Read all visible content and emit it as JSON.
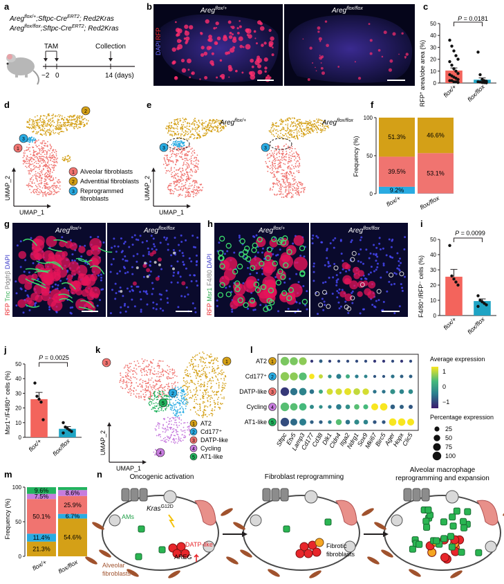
{
  "panel_letters": [
    "a",
    "b",
    "c",
    "d",
    "e",
    "f",
    "g",
    "h",
    "i",
    "j",
    "k",
    "l",
    "m",
    "n"
  ],
  "a": {
    "genotype1": "Areg",
    "genotype1_sup": "flox/+",
    "genotype1_rest": ";Sftpc-Cre",
    "genotype1_sup2": "ERT2",
    "genotype1_end": "; Red2Kras",
    "genotype2": "Areg",
    "genotype2_sup": "flox/flox",
    "genotype2_rest": ";Sftpc-Cre",
    "genotype2_sup2": "ERT2",
    "genotype2_end": "; Red2Kras",
    "tam": "TAM",
    "collection": "Collection",
    "ticks": [
      "−2",
      "0",
      "14 (days)"
    ]
  },
  "b": {
    "stain_red": "RFP",
    "stain_blue": "DAPI",
    "left": "Areg",
    "left_sup": "flox/+",
    "right": "Areg",
    "right_sup": "flox/flox"
  },
  "c": {
    "ylabel_main": "RFP",
    "ylabel_sup": "+",
    "ylabel_rest": " area/obe area (%)",
    "yticks": [
      "0",
      "10",
      "20",
      "30",
      "40",
      "50"
    ],
    "pvalue": "P = 0.0181",
    "groups": [
      "flox/+",
      "flox/flox"
    ]
  },
  "d": {
    "legend": [
      {
        "num": "1",
        "label": "Alveolar fibroblasts",
        "color": "#f07470"
      },
      {
        "num": "2",
        "label": "Adventitial fibroblasts",
        "color": "#d4a017"
      },
      {
        "num": "3",
        "label": "Reprogrammed",
        "label2": "fibroblasts",
        "color": "#29abe2"
      }
    ],
    "axis_y": "UMAP_2",
    "axis_x": "UMAP_1"
  },
  "e": {
    "left": "Areg",
    "left_sup": "flox/+",
    "right": "Areg",
    "right_sup": "flox/flox",
    "axis_y": "UMAP_2",
    "axis_x": "UMAP_1",
    "mark": "3"
  },
  "f": {
    "ylabel": "Frequency (%)",
    "yticks": [
      "0",
      "50",
      "100"
    ],
    "groups": [
      "flox/+",
      "flox/flox"
    ],
    "segments": [
      {
        "values": [
          9.2,
          39.5,
          51.3
        ],
        "labels": [
          "9.2%",
          "39.5%",
          "51.3%"
        ]
      },
      {
        "values": [
          0.3,
          53.1,
          46.6
        ],
        "labels": [
          "",
          "53.1%",
          "46.6%"
        ]
      }
    ]
  },
  "g": {
    "stain_red": "RFP",
    "stain_green": "Tnc",
    "stain_white": "Pdgfrβ",
    "stain_blue": "DAPI",
    "left": "Areg",
    "left_sup": "flox/+",
    "right": "Areg",
    "right_sup": "flox/flox"
  },
  "h": {
    "stain_red": "RFP",
    "stain_green": "Msr1",
    "stain_white": "F4/80",
    "stain_blue": "DAPI",
    "left": "Areg",
    "left_sup": "flox/+",
    "right": "Areg",
    "right_sup": "flox/flox"
  },
  "i": {
    "ylabel": "F4/80⁺/RFP⁻ cells (%)",
    "yticks": [
      "0",
      "10",
      "20",
      "30",
      "40",
      "50"
    ],
    "pvalue": "P = 0.0099",
    "groups": [
      "flox/+",
      "flox/flox"
    ]
  },
  "j": {
    "ylabel": "Msr1⁺/F4/80⁺ cells (%)",
    "yticks": [
      "0",
      "10",
      "20",
      "30",
      "40",
      "50"
    ],
    "pvalue": "P = 0.0025",
    "groups": [
      "flox/+",
      "flox/flox"
    ]
  },
  "k": {
    "legend": [
      {
        "num": "1",
        "label": "AT2",
        "color": "#d4a017"
      },
      {
        "num": "2",
        "label": "Cd177⁺",
        "color": "#29abe2"
      },
      {
        "num": "3",
        "label": "DATP-like",
        "color": "#f07470"
      },
      {
        "num": "4",
        "label": "Cycling",
        "color": "#c77cde"
      },
      {
        "num": "5",
        "label": "AT1-like",
        "color": "#22b35e"
      }
    ],
    "axis_y": "UMAP_2",
    "axis_x": "UMAP_1"
  },
  "l": {
    "rows": [
      {
        "label": "AT2",
        "num": "1",
        "color": "#d4a017"
      },
      {
        "label": "Cd177⁺",
        "num": "2",
        "color": "#29abe2"
      },
      {
        "label": "DATP-like",
        "num": "3",
        "color": "#f07470"
      },
      {
        "label": "Cycling",
        "num": "4",
        "color": "#c77cde"
      },
      {
        "label": "AT1-like",
        "num": "5",
        "color": "#22b35e"
      }
    ],
    "genes": [
      "Sftpc",
      "Etv5",
      "Lamp3",
      "Cd177",
      "Cd38",
      "Dlk1",
      "Cldn4",
      "Itga2",
      "Ndrg1",
      "Sox9",
      "Mki67",
      "Birc5",
      "Ager",
      "Hopx",
      "Clic5"
    ],
    "avg_title": "Average expression",
    "avg_ticks": [
      "1",
      "0",
      "−1"
    ],
    "pct_title": "Percentage expression",
    "pct_ticks": [
      "25",
      "50",
      "75",
      "100"
    ]
  },
  "m": {
    "ylabel": "Frequency (%)",
    "yticks": [
      "0",
      "50",
      "100"
    ],
    "groups": [
      "flox/+",
      "flox/flox"
    ],
    "colors": [
      "#d4a017",
      "#29abe2",
      "#f07470",
      "#c77cde",
      "#22b35e"
    ],
    "stacks": [
      {
        "values": [
          21.3,
          11.4,
          50.1,
          7.5,
          9.6
        ],
        "labels": [
          "21.3%",
          "11.4%",
          "50.1%",
          "7.5%",
          "9.6%"
        ]
      },
      {
        "values": [
          54.6,
          6.7,
          25.9,
          8.6,
          4.2
        ],
        "labels": [
          "54.6%",
          "6.7%",
          "25.9%",
          "8.6%",
          ""
        ]
      }
    ]
  },
  "n": {
    "titles": [
      "Oncogenic activation",
      "Fibroblast reprogramming",
      "Alveolar macrophage",
      "reprogramming and expansion"
    ],
    "kras": "Kras",
    "kras_sup": "G12D",
    "ams": "AMs",
    "datp": "DATP-like",
    "areg": "AREG",
    "fibroblasts1": "Alveolar",
    "fibroblasts2": "fibroblasts",
    "fibrotic1": "Fibrotic",
    "fibrotic2": "fibroblasts"
  },
  "chart_data": [
    {
      "type": "bar",
      "panel": "c",
      "categories": [
        "flox/+",
        "flox/flox"
      ],
      "values": [
        10.5,
        2.8
      ],
      "error": [
        2.2,
        1.5
      ],
      "points": [
        [
          36,
          31,
          27,
          23,
          20,
          18,
          15,
          12,
          10,
          8,
          7,
          6,
          5,
          4,
          3,
          2,
          2,
          1,
          1,
          0.5
        ],
        [
          26,
          7,
          3,
          2,
          1.5,
          1,
          0.8,
          0.5,
          0.3,
          0.2
        ]
      ],
      "ylabel": "RFP+ area/obe area (%)",
      "ylim": [
        0,
        50
      ],
      "colors": [
        "#f3645c",
        "#1fa4c4"
      ]
    },
    {
      "type": "bar",
      "panel": "f",
      "stacked": true,
      "categories": [
        "flox/+",
        "flox/flox"
      ],
      "series": [
        {
          "values": [
            9.2,
            0.3
          ]
        },
        {
          "values": [
            39.5,
            53.1
          ]
        },
        {
          "values": [
            51.3,
            46.6
          ]
        }
      ],
      "colors": [
        "#29abe2",
        "#f07470",
        "#d4a017"
      ],
      "ylabel": "Frequency (%)",
      "ylim": [
        0,
        100
      ]
    },
    {
      "type": "bar",
      "panel": "i",
      "categories": [
        "flox/+",
        "flox/flox"
      ],
      "values": [
        25.5,
        9.5
      ],
      "error": [
        4.8,
        1.4
      ],
      "points": [
        [
          46,
          26,
          24,
          22,
          20
        ],
        [
          13,
          10,
          9,
          8,
          7,
          6
        ]
      ],
      "ylabel": "F4/80+/RFP- cells (%)",
      "ylim": [
        0,
        50
      ],
      "colors": [
        "#f3645c",
        "#1fa4c4"
      ]
    },
    {
      "type": "bar",
      "panel": "j",
      "categories": [
        "flox/+",
        "flox/flox"
      ],
      "values": [
        26,
        5.8
      ],
      "error": [
        4.6,
        1.5
      ],
      "points": [
        [
          37,
          28,
          26,
          24,
          12
        ],
        [
          10,
          7,
          6,
          5,
          4,
          3
        ]
      ],
      "ylabel": "Msr1+/F4/80+ cells (%)",
      "ylim": [
        0,
        50
      ],
      "colors": [
        "#f3645c",
        "#1fa4c4"
      ]
    },
    {
      "type": "heatmap",
      "panel": "l",
      "rows": [
        "AT2",
        "Cd177+",
        "DATP-like",
        "Cycling",
        "AT1-like"
      ],
      "cols": [
        "Sftpc",
        "Etv5",
        "Lamp3",
        "Cd177",
        "Cd38",
        "Dlk1",
        "Cldn4",
        "Itga2",
        "Ndrg1",
        "Sox9",
        "Mki67",
        "Birc5",
        "Ager",
        "Hopx",
        "Clic5"
      ],
      "avg_expression": [
        [
          0.8,
          0.8,
          0.9,
          -1.2,
          -0.8,
          -1.1,
          -1,
          -1,
          -1,
          -1,
          -1.2,
          -1.2,
          -1,
          -1.2,
          -1
        ],
        [
          0.9,
          0.9,
          0.6,
          1.5,
          1.2,
          -0.2,
          -0.5,
          0.3,
          -0.5,
          -0.4,
          -0.9,
          -0.9,
          -0.6,
          -0.8,
          -0.8
        ],
        [
          -1.2,
          -0.6,
          -0.4,
          -0.6,
          0.2,
          1.3,
          1.3,
          1.4,
          1.2,
          1.3,
          -0.6,
          -0.6,
          -0.2,
          -0.4,
          -0.3
        ],
        [
          0.6,
          0.6,
          0.5,
          -0.3,
          -0.2,
          -0.5,
          -0.5,
          -0.2,
          0.6,
          0.5,
          1.5,
          1.6,
          -0.8,
          -0.8,
          -0.9
        ],
        [
          -1,
          -0.7,
          -0.5,
          -0.8,
          -0.8,
          -0.5,
          0.6,
          -0.6,
          -0.3,
          -0.4,
          -0.9,
          -0.9,
          1.6,
          1.6,
          1.5
        ]
      ],
      "pct_expression": [
        [
          100,
          85,
          80,
          5,
          8,
          5,
          5,
          5,
          5,
          5,
          5,
          5,
          5,
          5,
          5
        ],
        [
          100,
          85,
          80,
          30,
          15,
          10,
          25,
          15,
          10,
          8,
          5,
          5,
          10,
          8,
          8
        ],
        [
          100,
          65,
          70,
          20,
          15,
          45,
          50,
          60,
          55,
          50,
          10,
          10,
          25,
          20,
          20
        ],
        [
          100,
          70,
          70,
          15,
          10,
          10,
          30,
          20,
          30,
          25,
          60,
          70,
          20,
          15,
          15
        ],
        [
          100,
          60,
          60,
          10,
          10,
          10,
          40,
          20,
          25,
          20,
          10,
          10,
          70,
          70,
          60
        ]
      ]
    },
    {
      "type": "bar",
      "panel": "m",
      "stacked": true,
      "categories": [
        "flox/+",
        "flox/flox"
      ],
      "series": [
        {
          "name": "AT2",
          "values": [
            21.3,
            54.6
          ]
        },
        {
          "name": "Cd177+",
          "values": [
            11.4,
            6.7
          ]
        },
        {
          "name": "DATP-like",
          "values": [
            50.1,
            25.9
          ]
        },
        {
          "name": "Cycling",
          "values": [
            7.5,
            8.6
          ]
        },
        {
          "name": "AT1-like",
          "values": [
            9.6,
            4.2
          ]
        }
      ],
      "ylabel": "Frequency (%)",
      "ylim": [
        0,
        100
      ]
    }
  ]
}
